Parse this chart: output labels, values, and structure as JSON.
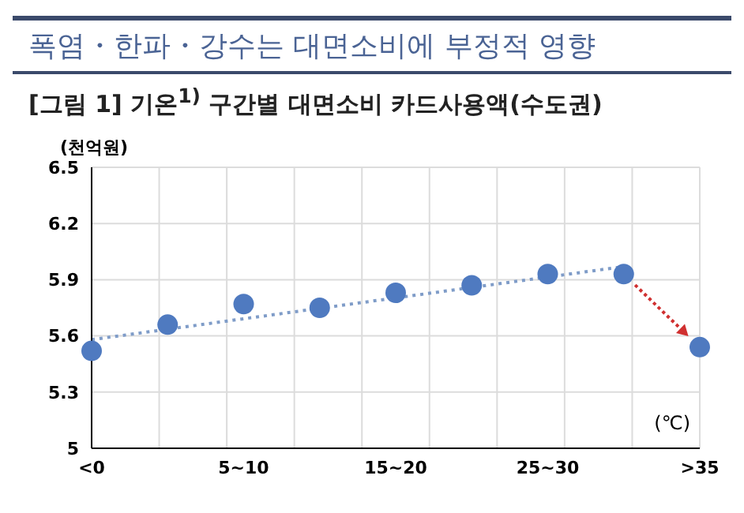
{
  "chart_data": {
    "type": "scatter",
    "title": "폭염・한파・강수는 대면소비에 부정적 영향",
    "subtitle": "[그림 1] 기온$^{1)}$ 구간별 대면소비 카드사용액(수도권)",
    "ylabel": "(천억원)",
    "xlabel": "(℃)",
    "categories": [
      "<0",
      null,
      "5~10",
      null,
      "15~20",
      null,
      "25~30",
      null,
      ">35"
    ],
    "series": [
      {
        "color": "#4f7ac0",
        "marker": "circle",
        "values": [
          5.52,
          5.66,
          5.77,
          5.75,
          5.83,
          5.87,
          5.93,
          5.93,
          5.54
        ]
      },
      {
        "type": "line",
        "color": "#7f9cc8",
        "line_style": "dotted",
        "values": [
          5.58,
          null,
          null,
          null,
          null,
          null,
          null,
          5.97,
          null
        ]
      }
    ],
    "ylim": [
      5,
      6.5
    ],
    "yticks": [
      5,
      5.3,
      5.6,
      5.9,
      6.2,
      6.5
    ],
    "grid": true
  }
}
